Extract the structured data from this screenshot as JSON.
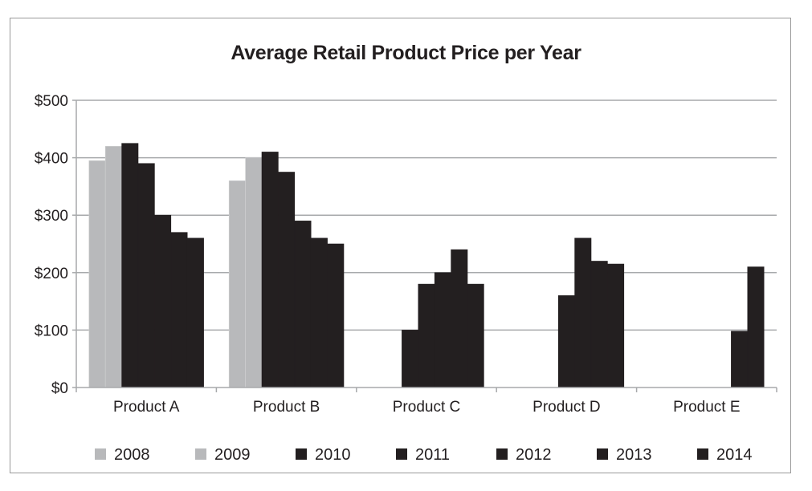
{
  "chart_data": {
    "type": "bar",
    "title": "Average Retail Product Price per Year",
    "xlabel": "",
    "ylabel": "",
    "ylim": [
      0,
      500
    ],
    "yticks": [
      0,
      100,
      200,
      300,
      400,
      500
    ],
    "ytick_labels": [
      "$0",
      "$100",
      "$200",
      "$300",
      "$400",
      "$500"
    ],
    "grid": true,
    "legend_position": "bottom",
    "categories": [
      "Product A",
      "Product B",
      "Product C",
      "Product D",
      "Product E"
    ],
    "series": [
      {
        "name": "2008",
        "color": "#b8b9bb",
        "values": [
          395,
          360,
          null,
          null,
          null
        ]
      },
      {
        "name": "2009",
        "color": "#b8b9bb",
        "values": [
          420,
          400,
          null,
          null,
          null
        ]
      },
      {
        "name": "2010",
        "color": "#231f20",
        "values": [
          425,
          410,
          100,
          null,
          null
        ]
      },
      {
        "name": "2011",
        "color": "#231f20",
        "values": [
          390,
          375,
          180,
          160,
          null
        ]
      },
      {
        "name": "2012",
        "color": "#231f20",
        "values": [
          300,
          290,
          200,
          260,
          null
        ]
      },
      {
        "name": "2013",
        "color": "#231f20",
        "values": [
          270,
          260,
          240,
          220,
          98
        ]
      },
      {
        "name": "2014",
        "color": "#231f20",
        "values": [
          260,
          250,
          180,
          215,
          210
        ]
      }
    ]
  }
}
